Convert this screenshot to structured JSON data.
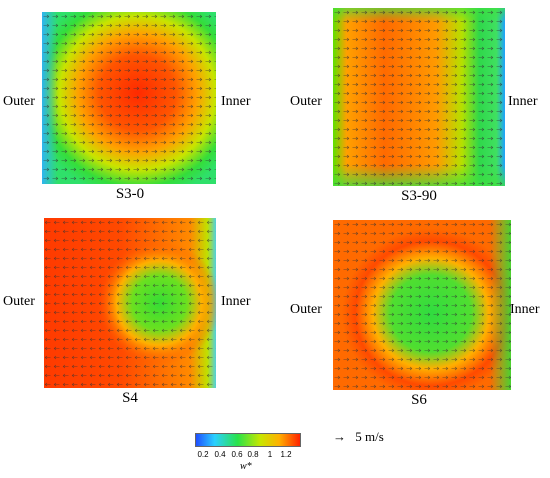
{
  "panels": [
    {
      "id": "p1",
      "caption": "S3-0",
      "left_label": "Outer",
      "right_label": "Inner"
    },
    {
      "id": "p2",
      "caption": "S3-90",
      "left_label": "Outer",
      "right_label": "Inner"
    },
    {
      "id": "p3",
      "caption": "S4",
      "left_label": "Outer",
      "right_label": "Inner"
    },
    {
      "id": "p4",
      "caption": "S6",
      "left_label": "Outer",
      "right_label": "Inner"
    }
  ],
  "colorbar": {
    "variable": "w*",
    "ticks": [
      "0.2",
      "0.4",
      "0.6",
      "0.8",
      "1",
      "1.2"
    ],
    "colors": [
      "#1f4fff",
      "#2ad0ff",
      "#29e24a",
      "#c8e600",
      "#ffb000",
      "#ff2200"
    ]
  },
  "scale_arrow": {
    "glyph": "→",
    "label": "5 m/s"
  }
}
